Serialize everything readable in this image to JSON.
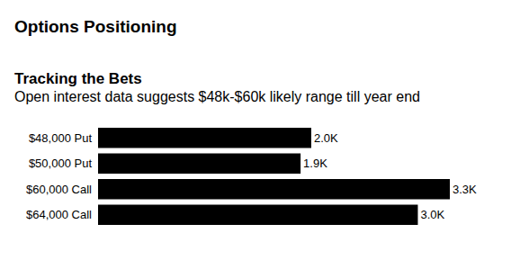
{
  "chart_data": {
    "type": "bar",
    "orientation": "horizontal",
    "header": "Options Positioning",
    "title": "Tracking the Bets",
    "subtitle": "Open interest data suggests $48k-$60k likely range till year end",
    "categories": [
      "$48,000 Put",
      "$50,000 Put",
      "$60,000 Call",
      "$64,000 Call"
    ],
    "values": [
      2000,
      1900,
      3300,
      3000
    ],
    "value_labels": [
      "2.0K",
      "1.9K",
      "3.3K",
      "3.0K"
    ],
    "color": "#000000",
    "xlim": [
      0,
      3300
    ],
    "data_labels": true,
    "tick_labels": "y",
    "grid": false
  }
}
